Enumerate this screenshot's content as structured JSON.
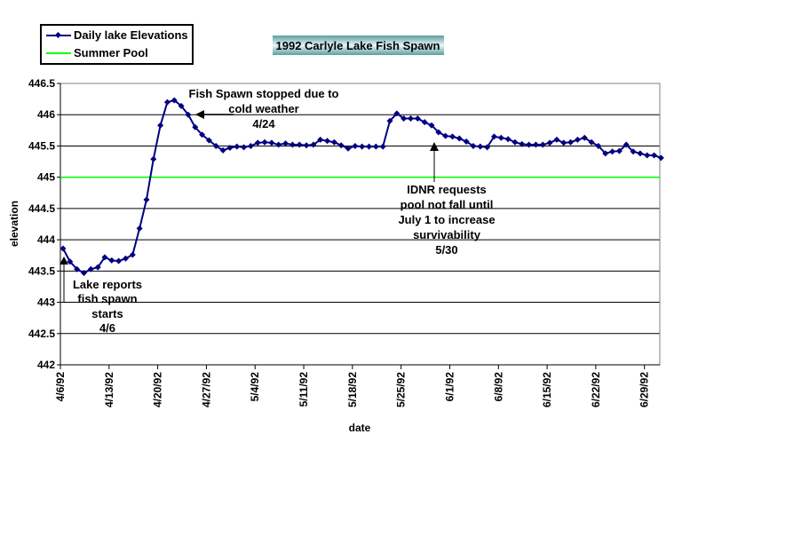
{
  "chart_data": {
    "type": "line",
    "title": "1992 Carlyle Lake Fish Spawn",
    "xlabel": "date",
    "ylabel": "elevation",
    "ylim": [
      442,
      446.5
    ],
    "y_ticks": [
      "442",
      "442.5",
      "443",
      "443.5",
      "444",
      "444.5",
      "445",
      "445.5",
      "446",
      "446.5"
    ],
    "x_ticks": [
      "4/6/92",
      "4/13/92",
      "4/20/92",
      "4/27/92",
      "5/4/92",
      "5/11/92",
      "5/18/92",
      "5/25/92",
      "6/1/92",
      "6/8/92",
      "6/15/92",
      "6/22/92",
      "6/29/92"
    ],
    "grid": true,
    "legend_position": "top-left",
    "x": [
      "4/6/92",
      "4/7/92",
      "4/8/92",
      "4/9/92",
      "4/10/92",
      "4/11/92",
      "4/12/92",
      "4/13/92",
      "4/14/92",
      "4/15/92",
      "4/16/92",
      "4/17/92",
      "4/18/92",
      "4/19/92",
      "4/20/92",
      "4/21/92",
      "4/22/92",
      "4/23/92",
      "4/24/92",
      "4/25/92",
      "4/26/92",
      "4/27/92",
      "4/28/92",
      "4/29/92",
      "4/30/92",
      "5/1/92",
      "5/2/92",
      "5/3/92",
      "5/4/92",
      "5/5/92",
      "5/6/92",
      "5/7/92",
      "5/8/92",
      "5/9/92",
      "5/10/92",
      "5/11/92",
      "5/12/92",
      "5/13/92",
      "5/14/92",
      "5/15/92",
      "5/16/92",
      "5/17/92",
      "5/18/92",
      "5/19/92",
      "5/20/92",
      "5/21/92",
      "5/22/92",
      "5/23/92",
      "5/24/92",
      "5/25/92",
      "5/26/92",
      "5/27/92",
      "5/28/92",
      "5/29/92",
      "5/30/92",
      "5/31/92",
      "6/1/92",
      "6/2/92",
      "6/3/92",
      "6/4/92",
      "6/5/92",
      "6/6/92",
      "6/7/92",
      "6/8/92",
      "6/9/92",
      "6/10/92",
      "6/11/92",
      "6/12/92",
      "6/13/92",
      "6/14/92",
      "6/15/92",
      "6/16/92",
      "6/17/92",
      "6/18/92",
      "6/19/92",
      "6/20/92",
      "6/21/92",
      "6/22/92",
      "6/23/92",
      "6/24/92",
      "6/25/92",
      "6/26/92",
      "6/27/92",
      "6/28/92",
      "6/29/92",
      "6/30/92",
      "7/1/92"
    ],
    "series": [
      {
        "name": "Daily lake Elevations",
        "color": "#000080",
        "values": [
          443.86,
          443.65,
          443.53,
          443.47,
          443.53,
          443.56,
          443.72,
          443.67,
          443.66,
          443.7,
          443.76,
          444.18,
          444.64,
          445.29,
          445.83,
          446.2,
          446.23,
          446.14,
          446.0,
          445.8,
          445.68,
          445.59,
          445.5,
          445.43,
          445.47,
          445.49,
          445.48,
          445.5,
          445.55,
          445.56,
          445.55,
          445.52,
          445.54,
          445.52,
          445.52,
          445.51,
          445.52,
          445.6,
          445.58,
          445.56,
          445.51,
          445.46,
          445.5,
          445.49,
          445.49,
          445.49,
          445.49,
          445.9,
          446.02,
          445.94,
          445.94,
          445.94,
          445.88,
          445.83,
          445.72,
          445.66,
          445.65,
          445.62,
          445.57,
          445.5,
          445.49,
          445.48,
          445.65,
          445.63,
          445.61,
          445.56,
          445.53,
          445.52,
          445.52,
          445.52,
          445.55,
          445.6,
          445.55,
          445.56,
          445.6,
          445.63,
          445.56,
          445.5,
          445.38,
          445.41,
          445.42,
          445.52,
          445.41,
          445.38,
          445.35,
          445.35,
          445.31
        ]
      },
      {
        "name": "Summer Pool",
        "color": "#00ff00",
        "constant": 445
      }
    ],
    "annotations": [
      {
        "lines": [
          "Lake reports",
          "fish spawn",
          "starts",
          "4/6"
        ],
        "points_to": "4/6/92"
      },
      {
        "lines": [
          "Fish Spawn stopped due to",
          "cold weather",
          "4/24"
        ],
        "points_to": "4/24/92"
      },
      {
        "lines": [
          "IDNR requests",
          "pool not fall until",
          "July 1 to increase",
          "survivability",
          "5/30"
        ],
        "points_to": "5/30/92"
      }
    ]
  }
}
